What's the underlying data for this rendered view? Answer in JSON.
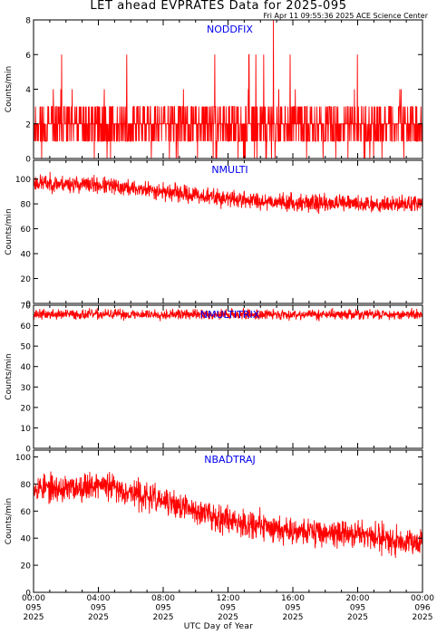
{
  "header": {
    "title": "LET ahead EVPRATES Data for 2025-095",
    "timestamp": "Fri Apr 11 09:55:36 2025 ACE Science Center"
  },
  "x_axis": {
    "label": "UTC Day of Year",
    "ticks": [
      {
        "time": "00:00",
        "doy": "095",
        "year": "2025"
      },
      {
        "time": "04:00",
        "doy": "095",
        "year": "2025"
      },
      {
        "time": "08:00",
        "doy": "095",
        "year": "2025"
      },
      {
        "time": "12:00",
        "doy": "095",
        "year": "2025"
      },
      {
        "time": "16:00",
        "doy": "095",
        "year": "2025"
      },
      {
        "time": "20:00",
        "doy": "095",
        "year": "2025"
      },
      {
        "time": "00:00",
        "doy": "096",
        "year": "2025"
      }
    ]
  },
  "colors": {
    "trace": "#ff0000",
    "panel_label": "#0000ee",
    "axes": "#000000"
  },
  "chart_data": [
    {
      "type": "line",
      "title": "NODDFIX",
      "ylabel": "Counts/min",
      "ylim": [
        0,
        8
      ],
      "yticks": [
        0,
        2,
        4,
        6,
        8
      ],
      "xlim_hours": [
        0,
        24
      ],
      "description": "1-minute counts, integer noise mostly 0-4 with spikes to 6 and one to 8",
      "series": [
        {
          "baseline": [
            [
              0,
              1.9
            ],
            [
              24,
              1.9
            ]
          ],
          "noise": 1.25,
          "spike_value": 6,
          "spike_rate": 0.012,
          "max_spike": {
            "x": 14.8,
            "y": 8
          },
          "integer": true,
          "seed": 11
        }
      ]
    },
    {
      "type": "line",
      "title": "NMULTI",
      "ylabel": "Counts/min",
      "ylim": [
        0,
        115
      ],
      "yticks": [
        0,
        20,
        40,
        60,
        80,
        100
      ],
      "xlim_hours": [
        0,
        24
      ],
      "series": [
        {
          "baseline": [
            [
              0,
              97
            ],
            [
              4,
              95
            ],
            [
              8,
              90
            ],
            [
              12,
              84
            ],
            [
              16,
              81
            ],
            [
              20,
              80
            ],
            [
              24,
              80
            ]
          ],
          "noise": 6,
          "seed": 23
        }
      ]
    },
    {
      "type": "line",
      "title": "NMULTITRIX",
      "ylabel": "Counts/min",
      "ylim": [
        0,
        70
      ],
      "yticks": [
        0,
        10,
        20,
        30,
        40,
        50,
        60,
        70
      ],
      "xlim_hours": [
        0,
        24
      ],
      "series": [
        {
          "baseline": [
            [
              0,
              65.5
            ],
            [
              24,
              65.5
            ]
          ],
          "noise": 2.2,
          "seed": 37
        }
      ]
    },
    {
      "type": "line",
      "title": "NBADTRAJ",
      "ylabel": "Counts/min",
      "ylim": [
        0,
        105
      ],
      "yticks": [
        0,
        20,
        40,
        60,
        80,
        100
      ],
      "xlim_hours": [
        0,
        24
      ],
      "series": [
        {
          "baseline": [
            [
              0,
              78
            ],
            [
              2,
              76
            ],
            [
              4,
              80
            ],
            [
              6,
              74
            ],
            [
              8,
              67
            ],
            [
              10,
              60
            ],
            [
              12,
              54
            ],
            [
              14,
              49
            ],
            [
              16,
              46
            ],
            [
              18,
              44
            ],
            [
              20,
              43
            ],
            [
              22,
              39
            ],
            [
              24,
              38
            ]
          ],
          "noise": 9,
          "seed": 53
        }
      ]
    }
  ]
}
